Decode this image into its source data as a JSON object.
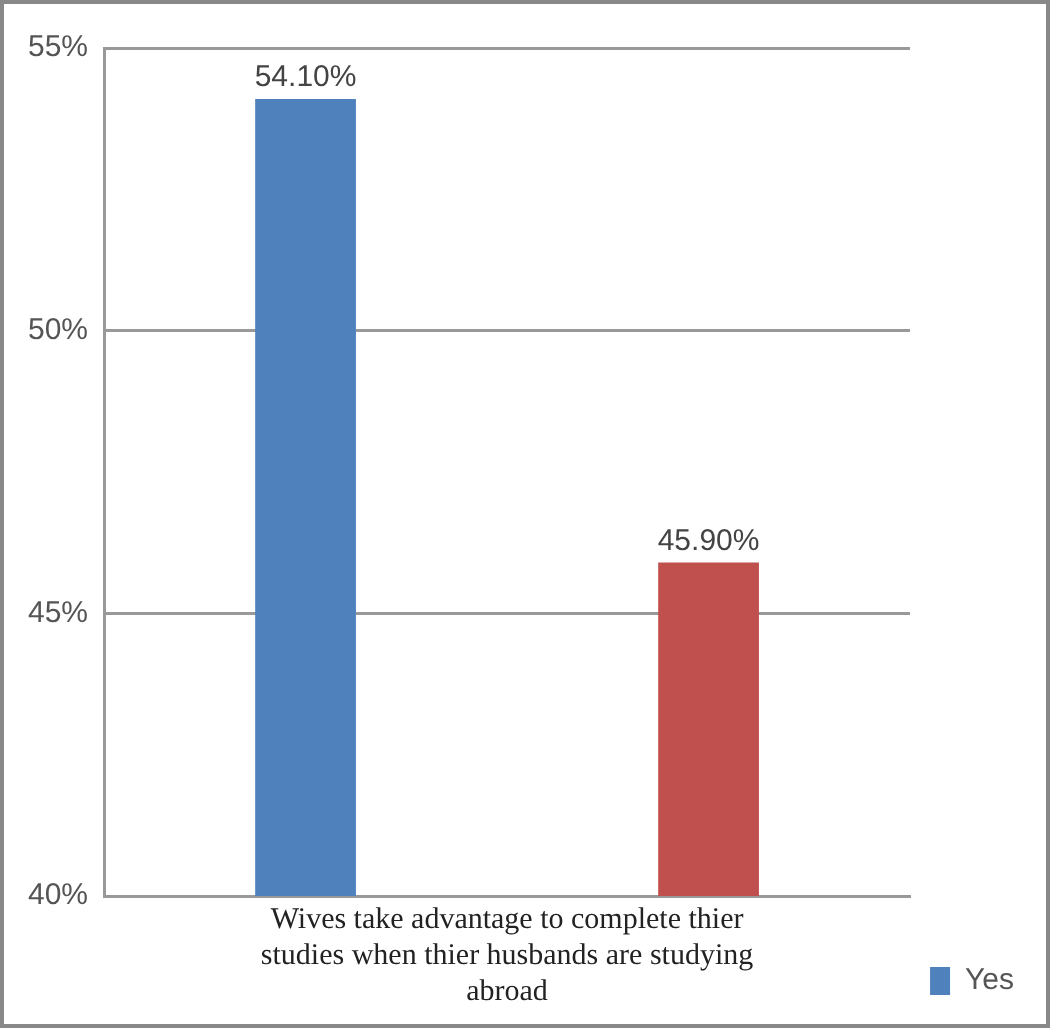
{
  "chart_data": {
    "type": "bar",
    "categories": [
      "Wives take advantage to complete thier studies when thier husbands are studying abroad"
    ],
    "series": [
      {
        "name": "Yes",
        "color": "#4f81bd",
        "values": [
          54.1
        ],
        "value_labels": [
          "54.10%"
        ]
      },
      {
        "color": "#c0504d",
        "values": [
          45.9
        ],
        "value_labels": [
          "45.90%"
        ]
      }
    ],
    "ylim": [
      40,
      55
    ],
    "yticks": [
      {
        "value": 40,
        "label": "40%"
      },
      {
        "value": 45,
        "label": "45%"
      },
      {
        "value": 50,
        "label": "50%"
      },
      {
        "value": 55,
        "label": "55%"
      }
    ],
    "grid": "y",
    "legend": "right"
  }
}
